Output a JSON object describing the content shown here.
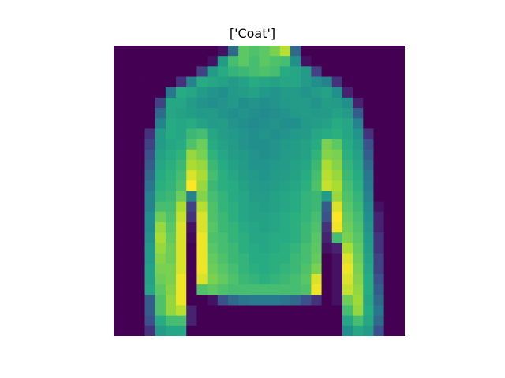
{
  "chart_data": {
    "type": "heatmap",
    "title": "['Coat']",
    "grid": false,
    "colormap": "viridis",
    "value_range": [
      0,
      1
    ],
    "rows": [
      [
        0,
        0,
        0,
        0,
        0,
        0,
        0,
        0,
        0,
        0,
        0.05,
        0.35,
        0.75,
        0.72,
        0.75,
        0.8,
        0.9,
        0.35,
        0,
        0,
        0,
        0,
        0,
        0,
        0,
        0,
        0,
        0
      ],
      [
        0,
        0,
        0,
        0,
        0,
        0,
        0,
        0,
        0,
        0.05,
        0.55,
        0.7,
        0.75,
        0.7,
        0.75,
        0.72,
        0.7,
        0.5,
        0.05,
        0,
        0,
        0,
        0,
        0,
        0,
        0,
        0,
        0
      ],
      [
        0,
        0,
        0,
        0,
        0,
        0,
        0,
        0,
        0.2,
        0.55,
        0.62,
        0.66,
        0.68,
        0.7,
        0.72,
        0.7,
        0.62,
        0.6,
        0.55,
        0.2,
        0,
        0,
        0,
        0,
        0,
        0,
        0,
        0
      ],
      [
        0,
        0,
        0,
        0,
        0,
        0,
        0.15,
        0.45,
        0.62,
        0.6,
        0.58,
        0.55,
        0.58,
        0.62,
        0.6,
        0.58,
        0.6,
        0.6,
        0.55,
        0.5,
        0.45,
        0.15,
        0,
        0,
        0,
        0,
        0,
        0
      ],
      [
        0,
        0,
        0,
        0,
        0,
        0.4,
        0.62,
        0.6,
        0.55,
        0.52,
        0.5,
        0.54,
        0.56,
        0.58,
        0.54,
        0.52,
        0.55,
        0.55,
        0.52,
        0.55,
        0.58,
        0.5,
        0.1,
        0,
        0,
        0,
        0,
        0
      ],
      [
        0,
        0,
        0,
        0,
        0.2,
        0.6,
        0.6,
        0.55,
        0.52,
        0.5,
        0.52,
        0.54,
        0.5,
        0.52,
        0.5,
        0.52,
        0.54,
        0.55,
        0.55,
        0.52,
        0.56,
        0.55,
        0.5,
        0.1,
        0,
        0,
        0,
        0
      ],
      [
        0,
        0,
        0,
        0,
        0.35,
        0.6,
        0.58,
        0.56,
        0.54,
        0.55,
        0.52,
        0.5,
        0.52,
        0.5,
        0.48,
        0.5,
        0.52,
        0.54,
        0.55,
        0.54,
        0.55,
        0.58,
        0.55,
        0.3,
        0,
        0,
        0,
        0
      ],
      [
        0,
        0,
        0,
        0,
        0.45,
        0.62,
        0.6,
        0.62,
        0.58,
        0.55,
        0.56,
        0.52,
        0.5,
        0.48,
        0.5,
        0.52,
        0.5,
        0.5,
        0.54,
        0.56,
        0.58,
        0.62,
        0.6,
        0.45,
        0,
        0,
        0,
        0
      ],
      [
        0,
        0,
        0,
        0.15,
        0.55,
        0.62,
        0.6,
        0.68,
        0.7,
        0.6,
        0.56,
        0.54,
        0.52,
        0.5,
        0.52,
        0.5,
        0.52,
        0.54,
        0.55,
        0.6,
        0.62,
        0.64,
        0.6,
        0.52,
        0.15,
        0,
        0,
        0
      ],
      [
        0,
        0,
        0,
        0.2,
        0.55,
        0.6,
        0.62,
        0.72,
        0.78,
        0.62,
        0.58,
        0.55,
        0.52,
        0.5,
        0.5,
        0.52,
        0.54,
        0.56,
        0.58,
        0.62,
        0.8,
        0.75,
        0.62,
        0.55,
        0.25,
        0,
        0,
        0
      ],
      [
        0,
        0,
        0,
        0.25,
        0.58,
        0.62,
        0.65,
        0.85,
        0.8,
        0.65,
        0.6,
        0.56,
        0.54,
        0.52,
        0.5,
        0.52,
        0.55,
        0.56,
        0.58,
        0.65,
        0.82,
        0.8,
        0.64,
        0.58,
        0.3,
        0,
        0,
        0
      ],
      [
        0,
        0,
        0,
        0.3,
        0.6,
        0.64,
        0.68,
        0.88,
        0.85,
        0.68,
        0.62,
        0.58,
        0.55,
        0.52,
        0.52,
        0.54,
        0.55,
        0.58,
        0.6,
        0.68,
        0.88,
        0.82,
        0.66,
        0.6,
        0.35,
        0,
        0,
        0
      ],
      [
        0,
        0,
        0,
        0.35,
        0.62,
        0.65,
        0.7,
        0.95,
        0.88,
        0.7,
        0.64,
        0.6,
        0.56,
        0.54,
        0.52,
        0.55,
        0.56,
        0.58,
        0.62,
        0.7,
        0.9,
        0.85,
        0.68,
        0.62,
        0.4,
        0,
        0,
        0
      ],
      [
        0,
        0,
        0,
        0.4,
        0.64,
        0.66,
        0.72,
        1.0,
        0.85,
        0.68,
        0.64,
        0.62,
        0.58,
        0.55,
        0.54,
        0.56,
        0.58,
        0.6,
        0.64,
        0.72,
        0.92,
        0.88,
        0.7,
        0.64,
        0.42,
        0,
        0,
        0
      ],
      [
        0,
        0,
        0,
        0.45,
        0.66,
        0.68,
        0.78,
        0.45,
        0.82,
        0.7,
        0.66,
        0.62,
        0.6,
        0.56,
        0.55,
        0.58,
        0.6,
        0.62,
        0.66,
        0.68,
        0.55,
        0.85,
        0.72,
        0.66,
        0.45,
        0,
        0,
        0
      ],
      [
        0,
        0,
        0,
        0.45,
        0.7,
        0.7,
        0.88,
        0.2,
        0.9,
        0.72,
        0.66,
        0.64,
        0.6,
        0.58,
        0.56,
        0.58,
        0.6,
        0.62,
        0.66,
        0.68,
        0.3,
        0.95,
        0.74,
        0.68,
        0.48,
        0.05,
        0,
        0
      ],
      [
        0,
        0,
        0,
        0.5,
        0.78,
        0.72,
        0.92,
        0.15,
        0.95,
        0.72,
        0.68,
        0.64,
        0.6,
        0.58,
        0.58,
        0.6,
        0.62,
        0.64,
        0.66,
        0.7,
        0.25,
        1.0,
        0.76,
        0.7,
        0.5,
        0.1,
        0,
        0
      ],
      [
        0,
        0,
        0,
        0.5,
        0.85,
        0.74,
        0.95,
        0.05,
        0.95,
        0.74,
        0.68,
        0.66,
        0.62,
        0.6,
        0.58,
        0.6,
        0.62,
        0.64,
        0.68,
        0.72,
        0.15,
        0.98,
        0.78,
        0.72,
        0.52,
        0.1,
        0,
        0
      ],
      [
        0,
        0,
        0,
        0.52,
        0.88,
        0.76,
        0.95,
        0.02,
        0.98,
        0.72,
        0.7,
        0.66,
        0.64,
        0.6,
        0.6,
        0.62,
        0.62,
        0.64,
        0.68,
        0.74,
        0.1,
        0.7,
        0.8,
        0.74,
        0.54,
        0.15,
        0,
        0
      ],
      [
        0,
        0,
        0,
        0.55,
        0.85,
        0.78,
        0.95,
        0,
        0.98,
        0.74,
        0.7,
        0.68,
        0.64,
        0.62,
        0.6,
        0.62,
        0.64,
        0.66,
        0.7,
        0.75,
        0.05,
        0.1,
        0.88,
        0.76,
        0.56,
        0.15,
        0,
        0
      ],
      [
        0,
        0,
        0,
        0.55,
        0.82,
        0.78,
        0.95,
        0,
        0.98,
        0.76,
        0.72,
        0.68,
        0.66,
        0.62,
        0.62,
        0.64,
        0.64,
        0.68,
        0.7,
        0.76,
        0.0,
        0.05,
        0.95,
        0.78,
        0.58,
        0.2,
        0,
        0
      ],
      [
        0,
        0,
        0,
        0.58,
        0.8,
        0.8,
        0.95,
        0,
        0.98,
        0.78,
        0.74,
        0.7,
        0.66,
        0.64,
        0.62,
        0.64,
        0.66,
        0.68,
        0.72,
        0.8,
        0.0,
        0.05,
        0.98,
        0.8,
        0.6,
        0.2,
        0,
        0
      ],
      [
        0,
        0,
        0,
        0.58,
        0.78,
        0.8,
        0.98,
        0,
        0.95,
        0.8,
        0.76,
        0.72,
        0.68,
        0.66,
        0.64,
        0.66,
        0.68,
        0.7,
        0.74,
        0.95,
        0.0,
        0.05,
        0.95,
        0.82,
        0.62,
        0.25,
        0,
        0
      ],
      [
        0,
        0,
        0,
        0.6,
        0.75,
        0.82,
        0.98,
        0,
        0.72,
        0.75,
        0.72,
        0.7,
        0.7,
        0.7,
        0.7,
        0.7,
        0.7,
        0.7,
        0.72,
        0.98,
        0.0,
        0.05,
        0.92,
        0.84,
        0.62,
        0.3,
        0,
        0
      ],
      [
        0,
        0,
        0,
        0.3,
        0.72,
        0.84,
        0.98,
        0,
        0,
        0.05,
        0.25,
        0.35,
        0.4,
        0.42,
        0.42,
        0.42,
        0.4,
        0.35,
        0.25,
        0.15,
        0,
        0.05,
        0.78,
        0.86,
        0.6,
        0.35,
        0,
        0
      ],
      [
        0,
        0,
        0,
        0.3,
        0.72,
        0.84,
        0.9,
        0.1,
        0,
        0,
        0,
        0,
        0,
        0,
        0,
        0,
        0,
        0,
        0,
        0,
        0,
        0,
        0.7,
        0.84,
        0.62,
        0.4,
        0,
        0
      ],
      [
        0,
        0,
        0,
        0.25,
        0.62,
        0.7,
        0.7,
        0.1,
        0,
        0,
        0,
        0,
        0,
        0,
        0,
        0,
        0,
        0,
        0,
        0,
        0,
        0,
        0.6,
        0.7,
        0.6,
        0.35,
        0,
        0
      ],
      [
        0,
        0,
        0,
        0.15,
        0.55,
        0.6,
        0.6,
        0,
        0,
        0,
        0,
        0,
        0,
        0,
        0,
        0,
        0,
        0,
        0,
        0,
        0,
        0,
        0.5,
        0.6,
        0.55,
        0.25,
        0,
        0
      ]
    ]
  }
}
